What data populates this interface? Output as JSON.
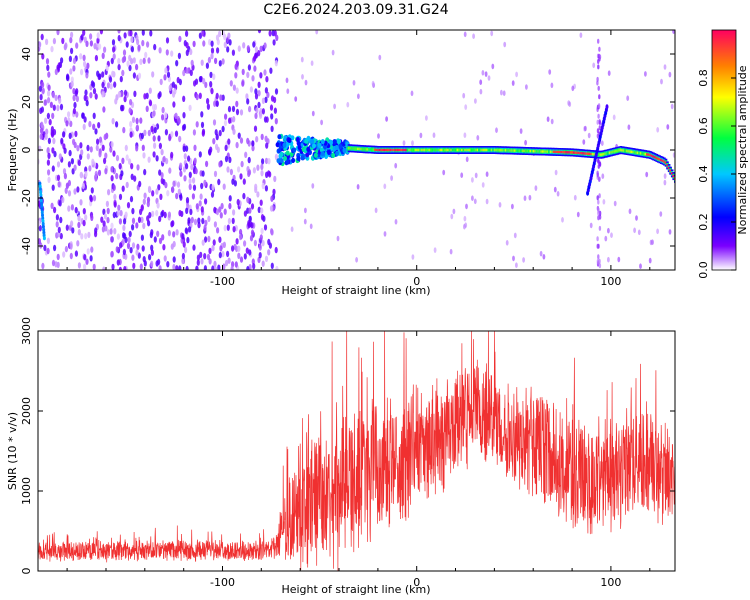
{
  "figure": {
    "title": "C2E6.2024.203.09.31.G24"
  },
  "chart_data": [
    {
      "type": "heatmap",
      "xlabel": "Height of straight line (km)",
      "ylabel": "Frequency (Hz)",
      "xlim": [
        -195,
        133
      ],
      "ylim": [
        -50,
        50
      ],
      "x_ticks": [
        -100,
        0,
        100
      ],
      "y_ticks": [
        -40,
        -20,
        0,
        20,
        40
      ],
      "colorbar": {
        "label": "Normalized spectral amplitude",
        "range": [
          0.0,
          1.0
        ],
        "ticks": [
          "0.0",
          "0.2",
          "0.4",
          "0.6",
          "0.8"
        ],
        "colormap": [
          "#ffffff",
          "#7a00ff",
          "#0000ff",
          "#00c8ff",
          "#00ff40",
          "#ffff00",
          "#ff8000",
          "#ff0060"
        ]
      },
      "regions": [
        {
          "name": "noise",
          "x_range": [
            -195,
            -72
          ],
          "amplitude": [
            0.1,
            0.25
          ]
        },
        {
          "name": "signal-onset",
          "x_range": [
            -72,
            -35
          ],
          "freq_spread": 6,
          "amplitude": [
            0.3,
            0.5
          ]
        },
        {
          "name": "signal-track",
          "x_range": [
            -35,
            133
          ],
          "freq_hz": 0,
          "amplitude": [
            0.5,
            1.0
          ]
        }
      ],
      "track": [
        {
          "x": -72,
          "f": 0
        },
        {
          "x": -40,
          "f": 1
        },
        {
          "x": -20,
          "f": 0
        },
        {
          "x": 0,
          "f": 0
        },
        {
          "x": 40,
          "f": 0
        },
        {
          "x": 80,
          "f": -1
        },
        {
          "x": 95,
          "f": -2
        },
        {
          "x": 105,
          "f": 0
        },
        {
          "x": 120,
          "f": -2
        },
        {
          "x": 128,
          "f": -5
        },
        {
          "x": 133,
          "f": -12
        }
      ]
    },
    {
      "type": "line",
      "xlabel": "Height of straight line (km)",
      "ylabel": "SNR (10 * v/v)",
      "xlim": [
        -195,
        133
      ],
      "ylim": [
        0,
        3000
      ],
      "x_ticks": [
        -100,
        0,
        100
      ],
      "y_ticks": [
        0,
        1000,
        2000,
        3000
      ],
      "color": "#f03030",
      "envelope": [
        {
          "x": -195,
          "mean": 250,
          "spread": 150
        },
        {
          "x": -75,
          "mean": 250,
          "spread": 150
        },
        {
          "x": -60,
          "mean": 800,
          "spread": 900
        },
        {
          "x": -30,
          "mean": 1100,
          "spread": 1100
        },
        {
          "x": 0,
          "mean": 1500,
          "spread": 900
        },
        {
          "x": 30,
          "mean": 2000,
          "spread": 700
        },
        {
          "x": 60,
          "mean": 1600,
          "spread": 800
        },
        {
          "x": 90,
          "mean": 1100,
          "spread": 900
        },
        {
          "x": 110,
          "mean": 1400,
          "spread": 800
        },
        {
          "x": 133,
          "mean": 1200,
          "spread": 700
        }
      ]
    }
  ]
}
